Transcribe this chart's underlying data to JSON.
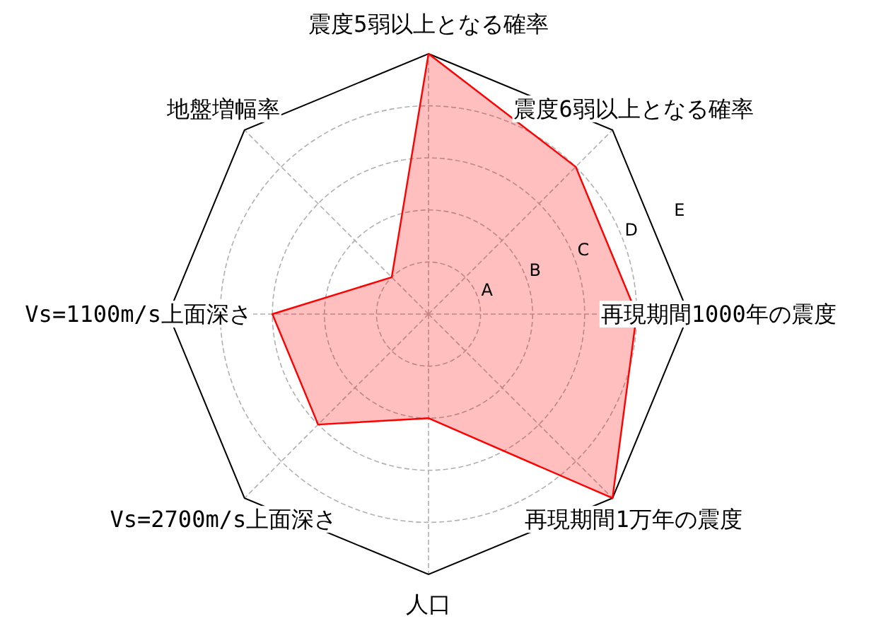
{
  "chart_data": {
    "type": "radar",
    "categories": [
      "震度5弱以上となる確率",
      "震度6弱以上となる確率",
      "再現期間1000年の震度",
      "再現期間1万年の震度",
      "人口",
      "Vs=2700m/s上面深さ",
      "Vs=1100m/s上面深さ",
      "地盤増幅率"
    ],
    "series": [
      {
        "color": "#ff0000",
        "values": [
          5,
          4,
          4,
          5,
          2,
          3,
          3,
          1
        ]
      }
    ],
    "ylim": [
      0,
      5
    ],
    "yticks": [
      {
        "value": 1,
        "label": "A"
      },
      {
        "value": 2,
        "label": "B"
      },
      {
        "value": 3,
        "label": "C"
      },
      {
        "value": 4,
        "label": "D"
      },
      {
        "value": 5,
        "label": "E"
      }
    ],
    "grid": true
  }
}
